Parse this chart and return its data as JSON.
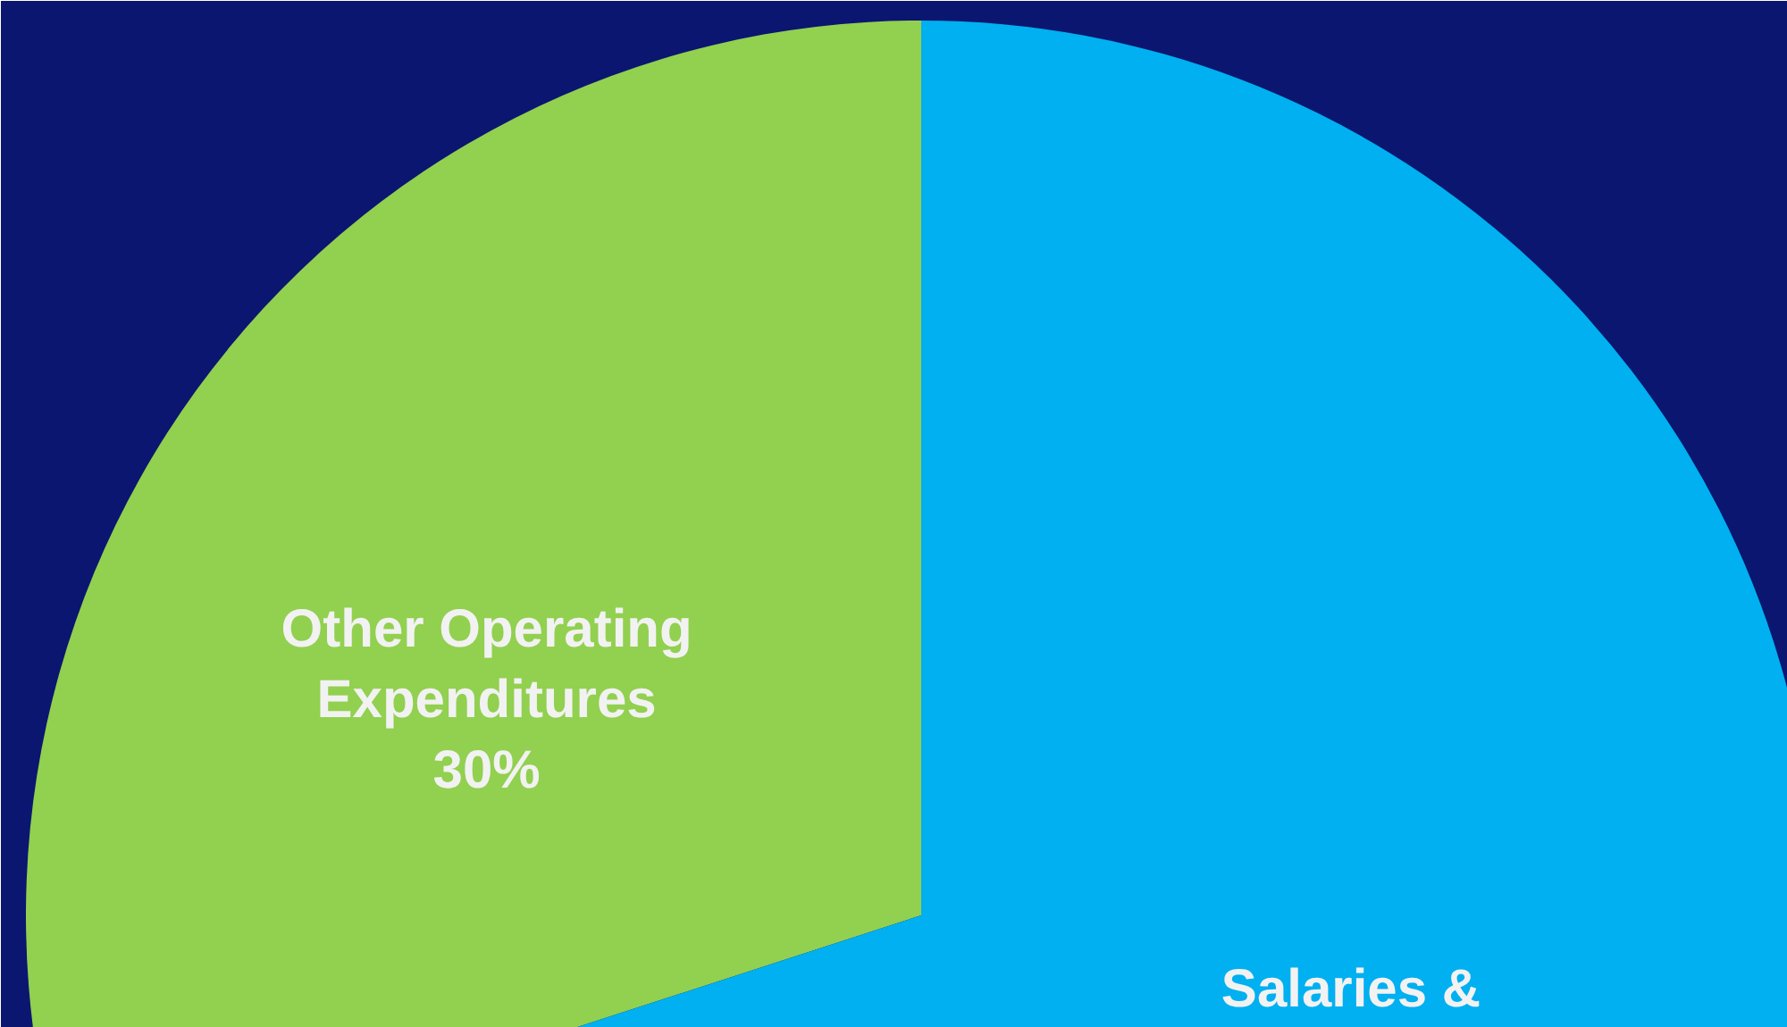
{
  "chart_data": {
    "type": "pie",
    "categories": [
      "Other Operating Expenditures",
      "Salaries &"
    ],
    "values": [
      30,
      70
    ],
    "colors": [
      "#92d050",
      "#00b0f0"
    ],
    "value_labels": [
      "30%",
      null
    ]
  }
}
